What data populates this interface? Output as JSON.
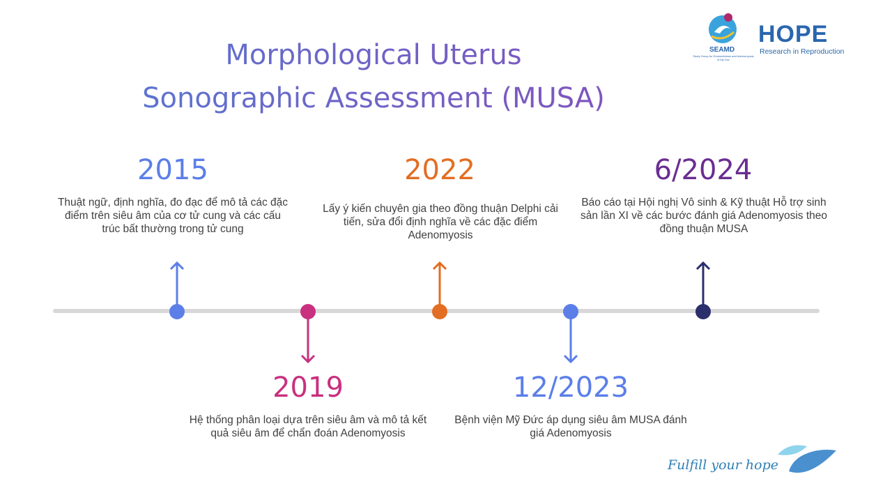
{
  "title": {
    "line1": "Morphological Uterus",
    "line2": "Sonographic Assessment (MUSA)"
  },
  "logos": {
    "seamd": {
      "name": "SEAMD",
      "subtitle": "Study Group for Endometriosis and Adenomyosis of My Duc"
    },
    "hope": {
      "name": "HOPE",
      "subtitle": "Research in Reproduction"
    }
  },
  "timeline": {
    "events": [
      {
        "year": "2015",
        "position": "above",
        "color": "#4f74e3",
        "text": "Thuật ngữ, định nghĩa, đo đạc để mô tả các đặc điểm trên siêu âm của cơ tử cung và các cấu trúc bất thường trong tử cung"
      },
      {
        "year": "2019",
        "position": "below",
        "color": "#cc3f8e",
        "text": "Hệ thống phân loại dựa trên siêu âm và mô tả kết quả siêu âm để chẩn đoán Adenomyosis"
      },
      {
        "year": "2022",
        "position": "above",
        "color": "#e07a34",
        "text": "Lấy ý kiến chuyên gia theo đồng thuận Delphi cải tiến, sửa đổi định nghĩa về các đặc điểm Adenomyosis"
      },
      {
        "year": "12/2023",
        "position": "below",
        "color": "#4f74e3",
        "text": "Bệnh viện Mỹ Đức áp dụng siêu âm MUSA đánh giá Adenomyosis"
      },
      {
        "year": "6/2024",
        "position": "above",
        "color": "#6a2d91",
        "text": "Báo cáo tại Hội nghị Vô sinh & Kỹ thuật Hỗ trợ sinh sản lần XI về các bước đánh giá Adenomyosis theo đồng thuận MUSA"
      }
    ]
  },
  "footer": {
    "tagline": "Fulfill your hope"
  },
  "colors": {
    "dot_2015": "#5b7ee8",
    "dot_2019": "#c9307f",
    "dot_2022": "#e36d22",
    "dot_2023": "#5b7ee8",
    "dot_2024": "#2b2f6b"
  }
}
